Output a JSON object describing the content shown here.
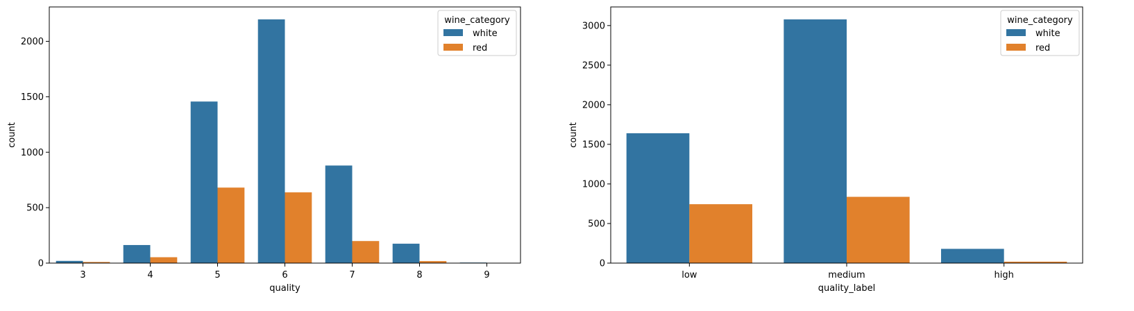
{
  "chart_data": [
    {
      "type": "bar",
      "xlabel": "quality",
      "ylabel": "count",
      "categories": [
        "3",
        "4",
        "5",
        "6",
        "7",
        "8",
        "9"
      ],
      "ylim": [
        0,
        2310
      ],
      "yticks": [
        0,
        500,
        1000,
        1500,
        2000
      ],
      "legend": {
        "title": "wine_category",
        "placement": "top-right"
      },
      "series": [
        {
          "name": "white",
          "color": "#3274a1",
          "values": [
            20,
            163,
            1457,
            2198,
            880,
            175,
            5
          ]
        },
        {
          "name": "red",
          "color": "#e1812c",
          "values": [
            10,
            53,
            681,
            638,
            199,
            18,
            0
          ]
        }
      ],
      "grid": false
    },
    {
      "type": "bar",
      "xlabel": "quality_label",
      "ylabel": "count",
      "categories": [
        "low",
        "medium",
        "high"
      ],
      "ylim": [
        0,
        3235
      ],
      "yticks": [
        0,
        500,
        1000,
        1500,
        2000,
        2500,
        3000
      ],
      "legend": {
        "title": "wine_category",
        "placement": "top-right"
      },
      "series": [
        {
          "name": "white",
          "color": "#3274a1",
          "values": [
            1640,
            3078,
            180
          ]
        },
        {
          "name": "red",
          "color": "#e1812c",
          "values": [
            744,
            837,
            18
          ]
        }
      ],
      "grid": false
    }
  ]
}
